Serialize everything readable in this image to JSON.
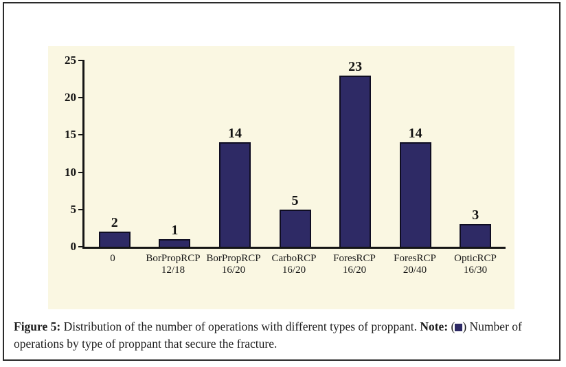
{
  "caption": {
    "figure_label": "Figure 5:",
    "body": "Distribution of the number of operations with different types of proppant.",
    "note_label": "Note:",
    "note_open": "(",
    "note_close": ") Number of operations by type of proppant that secure the fracture."
  },
  "colors": {
    "frame_border": "#2a2a2a",
    "plot_background": "#faf7e2",
    "bar_fill": "#2e2a65",
    "bar_border": "#0f0d22"
  },
  "chart_data": {
    "type": "bar",
    "title": "",
    "xlabel": "",
    "ylabel": "",
    "categories": [
      {
        "line1": "0",
        "line2": ""
      },
      {
        "line1": "BorPropRCP",
        "line2": "12/18"
      },
      {
        "line1": "BorPropRCP",
        "line2": "16/20"
      },
      {
        "line1": "CarboRCP",
        "line2": "16/20"
      },
      {
        "line1": "ForesRCP",
        "line2": "16/20"
      },
      {
        "line1": "ForesRCP",
        "line2": "20/40"
      },
      {
        "line1": "OpticRCP",
        "line2": "16/30"
      }
    ],
    "values": [
      2,
      1,
      14,
      5,
      23,
      14,
      3
    ],
    "ylim": [
      0,
      25
    ],
    "yticks": [
      0,
      5,
      10,
      15,
      20,
      25
    ],
    "grid": false,
    "legend": {
      "marker": "square",
      "label": "Number of operations by type of proppant that secure the fracture"
    }
  }
}
